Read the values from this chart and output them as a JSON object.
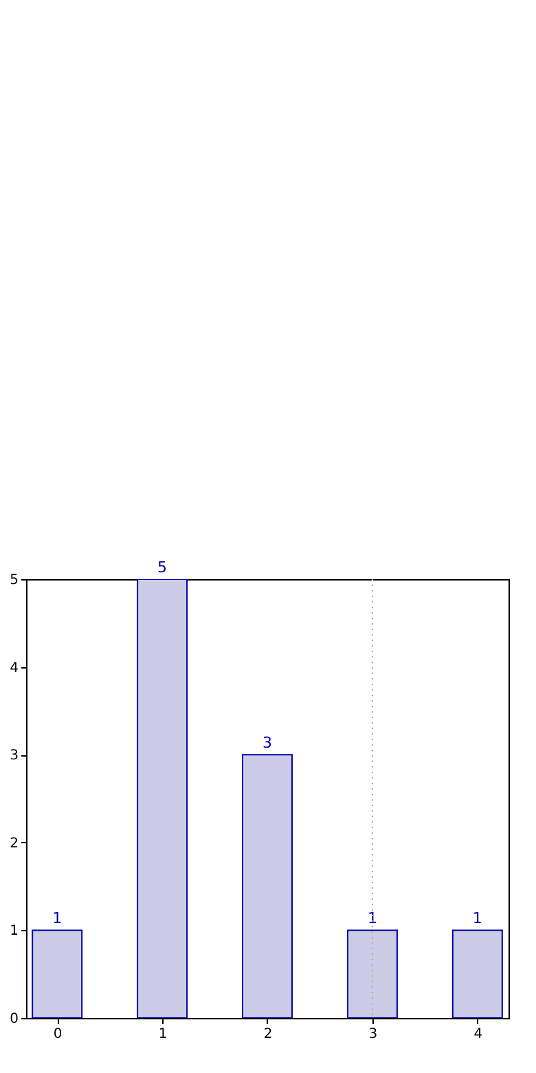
{
  "chart_data": {
    "type": "bar",
    "x": [
      0,
      1,
      2,
      3,
      4
    ],
    "series": [
      {
        "color": "#cccce6",
        "values": [
          1,
          5,
          3,
          1,
          1
        ]
      }
    ],
    "xlim": [
      -0.23,
      4.23
    ],
    "xticks": [
      0,
      1,
      2,
      3,
      4
    ],
    "ylim": [
      0,
      5
    ],
    "yticks": [
      0,
      1,
      2,
      3,
      4,
      5
    ],
    "data_labels": true,
    "grid": false,
    "ref_lines": [
      {
        "axis": "x",
        "value": 3,
        "color": "#aaaaaa",
        "line_style": "dotted"
      }
    ]
  }
}
